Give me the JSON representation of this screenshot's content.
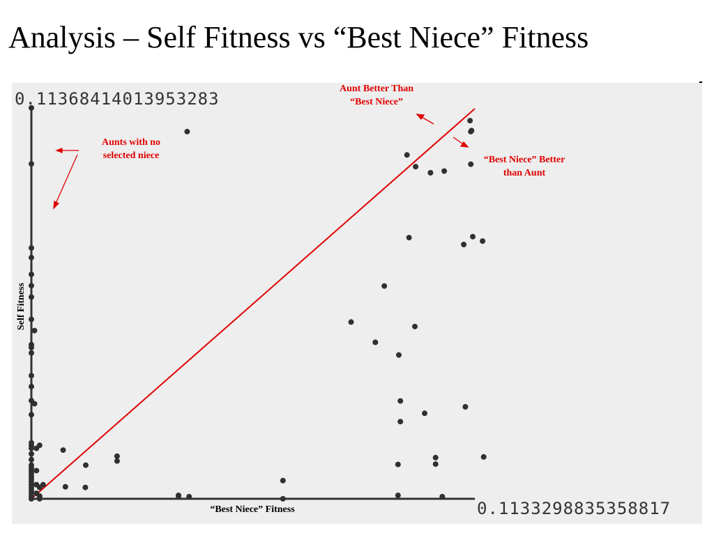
{
  "slide": {
    "title": "Analysis – Self Fitness vs “Best Niece” Fitness"
  },
  "chart_data": {
    "type": "scatter",
    "xlabel": "“Best Niece” Fitness",
    "ylabel": "Self Fitness",
    "x_max_label": "0.1133298835358817",
    "y_max_label": "0.11368414013953283",
    "xlim": [
      0,
      0.1133298835358817
    ],
    "ylim": [
      0,
      0.11368414013953283
    ],
    "grid": false,
    "background_color": "#eeeeee",
    "point_color": "#303030",
    "reference_line": {
      "from": [
        0,
        0
      ],
      "to": [
        0.1133298835358817,
        0.11368414013953283
      ],
      "color": "#e00000"
    },
    "points": [
      [
        0.0398,
        0.107
      ],
      [
        0.096,
        0.1002
      ],
      [
        0.0982,
        0.0968
      ],
      [
        0.102,
        0.095
      ],
      [
        0.1055,
        0.0955
      ],
      [
        0.1121,
        0.1102
      ],
      [
        0.1123,
        0.107
      ],
      [
        0.1125,
        0.1073
      ],
      [
        0.1123,
        0.0975
      ],
      [
        0.0965,
        0.0761
      ],
      [
        0.1105,
        0.0741
      ],
      [
        0.1128,
        0.0764
      ],
      [
        0.1153,
        0.0751
      ],
      [
        0.0902,
        0.062
      ],
      [
        0.0817,
        0.0515
      ],
      [
        0.098,
        0.0502
      ],
      [
        0.0879,
        0.0456
      ],
      [
        0.0939,
        0.0419
      ],
      [
        0.0943,
        0.0285
      ],
      [
        0.0943,
        0.0225
      ],
      [
        0.1005,
        0.0249
      ],
      [
        0.1109,
        0.0268
      ],
      [
        0.0937,
        0.01
      ],
      [
        0.1033,
        0.012
      ],
      [
        0.1033,
        0.0101
      ],
      [
        0.1156,
        0.0122
      ],
      [
        0.0937,
        0.001
      ],
      [
        0.105,
        0.0006
      ],
      [
        0.0081,
        0.0142
      ],
      [
        0.0139,
        0.0098
      ],
      [
        0.0219,
        0.0124
      ],
      [
        0.0219,
        0.011
      ],
      [
        0.0087,
        0.0035
      ],
      [
        0.0138,
        0.0033
      ],
      [
        0.0376,
        0.001
      ],
      [
        0.0376,
        0.0008
      ],
      [
        0.0403,
        0.0006
      ],
      [
        0.0643,
        0.0053
      ],
      [
        0.0643,
        0.0
      ],
      [
        0.0,
        0.1139
      ],
      [
        0.0,
        0.0976
      ],
      [
        0.0,
        0.0731
      ],
      [
        0.0,
        0.0703
      ],
      [
        0.0,
        0.0654
      ],
      [
        0.0,
        0.0621
      ],
      [
        0.0,
        0.0588
      ],
      [
        0.0,
        0.0523
      ],
      [
        0.0,
        0.0449
      ],
      [
        0.0,
        0.0441
      ],
      [
        0.0,
        0.0425
      ],
      [
        0.0,
        0.0359
      ],
      [
        0.0,
        0.0327
      ],
      [
        0.0,
        0.0286
      ],
      [
        0.0,
        0.0245
      ],
      [
        0.0,
        0.0163
      ],
      [
        0.0,
        0.0155
      ],
      [
        0.0,
        0.0147
      ],
      [
        0.0,
        0.0131
      ],
      [
        0.0,
        0.0114
      ],
      [
        0.0,
        0.0098
      ],
      [
        0.0,
        0.009
      ],
      [
        0.0,
        0.0082
      ],
      [
        0.0,
        0.0074
      ],
      [
        0.0,
        0.0065
      ],
      [
        0.0,
        0.0057
      ],
      [
        0.0,
        0.0049
      ],
      [
        0.0,
        0.0041
      ],
      [
        0.0,
        0.0033
      ],
      [
        0.0,
        0.0025
      ],
      [
        0.0,
        0.0016
      ],
      [
        0.0,
        0.0008
      ],
      [
        0.0,
        0.0
      ],
      [
        0.0013,
        0.0147
      ],
      [
        0.0013,
        0.0082
      ],
      [
        0.0013,
        0.0041
      ],
      [
        0.0013,
        0.0016
      ],
      [
        0.0021,
        0.0156
      ],
      [
        0.0021,
        0.0033
      ],
      [
        0.0021,
        0.0
      ],
      [
        0.0008,
        0.049
      ],
      [
        0.0008,
        0.0277
      ],
      [
        0.003,
        0.0041
      ],
      [
        0.0021,
        0.0008
      ],
      [
        0.0021,
        0.0004
      ]
    ],
    "annotations": [
      {
        "id": "aunt-better",
        "lines": [
          "Aunt Better Than",
          "“Best Niece”"
        ]
      },
      {
        "id": "no-niece",
        "lines": [
          "Aunts with no",
          "selected niece"
        ]
      },
      {
        "id": "niece-better",
        "lines": [
          "“Best Niece” Better",
          "than Aunt"
        ]
      }
    ]
  }
}
